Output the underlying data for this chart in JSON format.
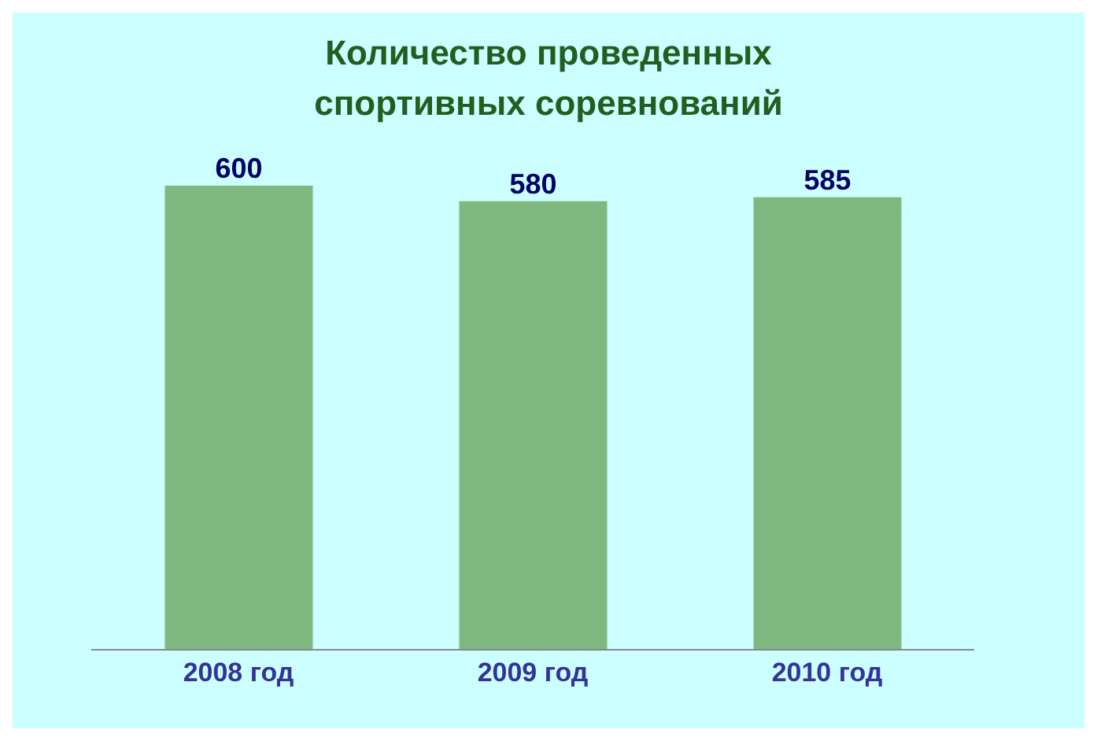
{
  "chart_data": {
    "type": "bar",
    "title": "Количество проведенных\nспортивных соревнований",
    "categories": [
      "2008 год",
      "2009 год",
      "2010 год"
    ],
    "values": [
      600,
      580,
      585
    ],
    "color": "#7fb87f",
    "data_labels": true,
    "tick_labels": "x",
    "grid": false,
    "legend": false
  }
}
